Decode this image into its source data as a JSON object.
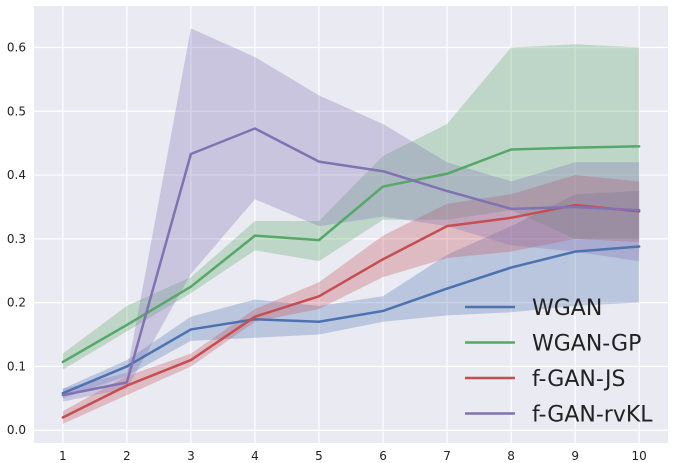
{
  "chart_data": {
    "type": "line",
    "title": "",
    "xlabel": "",
    "ylabel": "",
    "x": [
      1,
      2,
      3,
      4,
      5,
      6,
      7,
      8,
      9,
      10
    ],
    "xlim": [
      0.55,
      10.45
    ],
    "ylim": [
      -0.02,
      0.665
    ],
    "grid": true,
    "legend_position": "bottom-right",
    "xticks": [
      "1",
      "2",
      "3",
      "4",
      "5",
      "6",
      "7",
      "8",
      "9",
      "10"
    ],
    "yticks": [
      {
        "value": 0.0,
        "label": "0.0"
      },
      {
        "value": 0.1,
        "label": "0.1"
      },
      {
        "value": 0.2,
        "label": "0.2"
      },
      {
        "value": 0.3,
        "label": "0.3"
      },
      {
        "value": 0.4,
        "label": "0.4"
      },
      {
        "value": 0.5,
        "label": "0.5"
      },
      {
        "value": 0.6,
        "label": "0.6"
      }
    ],
    "series": [
      {
        "name": "WGAN",
        "color": "#4c72b0",
        "values": [
          0.058,
          0.1,
          0.158,
          0.174,
          0.17,
          0.187,
          0.222,
          0.255,
          0.28,
          0.288
        ],
        "lower": [
          0.05,
          0.085,
          0.14,
          0.145,
          0.15,
          0.17,
          0.18,
          0.185,
          0.195,
          0.2
        ],
        "upper": [
          0.065,
          0.11,
          0.178,
          0.205,
          0.195,
          0.21,
          0.275,
          0.32,
          0.37,
          0.375
        ]
      },
      {
        "name": "WGAN-GP",
        "color": "#55a868",
        "values": [
          0.107,
          0.165,
          0.225,
          0.305,
          0.298,
          0.382,
          0.402,
          0.44,
          0.443,
          0.445
        ],
        "lower": [
          0.095,
          0.155,
          0.215,
          0.282,
          0.265,
          0.33,
          0.33,
          0.345,
          0.3,
          0.3
        ],
        "upper": [
          0.12,
          0.195,
          0.24,
          0.328,
          0.328,
          0.43,
          0.48,
          0.6,
          0.605,
          0.6
        ]
      },
      {
        "name": "f-GAN-JS",
        "color": "#c44e52",
        "values": [
          0.02,
          0.07,
          0.11,
          0.178,
          0.21,
          0.268,
          0.32,
          0.333,
          0.353,
          0.343
        ],
        "lower": [
          0.01,
          0.055,
          0.1,
          0.17,
          0.19,
          0.24,
          0.27,
          0.28,
          0.3,
          0.295
        ],
        "upper": [
          0.03,
          0.085,
          0.12,
          0.19,
          0.232,
          0.305,
          0.355,
          0.37,
          0.4,
          0.39
        ]
      },
      {
        "name": "f-GAN-rvKL",
        "color": "#8172b2",
        "values": [
          0.055,
          0.075,
          0.433,
          0.473,
          0.421,
          0.406,
          0.375,
          0.347,
          0.35,
          0.345
        ],
        "lower": [
          0.045,
          0.065,
          0.245,
          0.362,
          0.32,
          0.335,
          0.32,
          0.29,
          0.28,
          0.265
        ],
        "upper": [
          0.065,
          0.09,
          0.63,
          0.585,
          0.525,
          0.48,
          0.42,
          0.39,
          0.42,
          0.42
        ]
      }
    ]
  }
}
